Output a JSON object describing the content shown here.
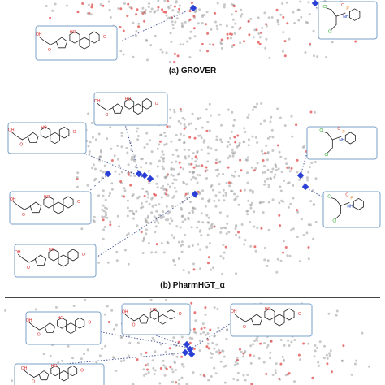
{
  "figure": {
    "panels": [
      {
        "id": "a",
        "caption": "(a) GROVER"
      },
      {
        "id": "b",
        "caption": "(b) PharmHGT_α"
      },
      {
        "id": "c",
        "caption": ""
      }
    ],
    "colors": {
      "background": "#ffffff",
      "gray_point": "#9a9a9a",
      "red_point": "#e24a4a",
      "highlight_point": "#2a3fd6",
      "box_border": "#7aa0c8",
      "dotted_line": "#4a5a9a",
      "molecule_line": "#222222",
      "oxygen": "#d62020",
      "nitrogen": "#2040c0",
      "chlorine": "#20a020",
      "phosphorus": "#e08020"
    },
    "molecule_atom_labels": {
      "steroid": [
        "O",
        "OH",
        "HO",
        "F"
      ],
      "phosphoramide": [
        "O",
        "P",
        "N",
        "H",
        "Cl",
        "Cl"
      ]
    }
  }
}
